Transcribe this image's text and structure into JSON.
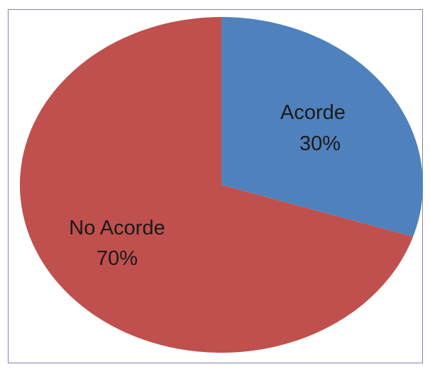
{
  "chart_data": {
    "type": "pie",
    "title": "",
    "slices": [
      {
        "label": "Acorde",
        "value": 30,
        "percent_text": "30%",
        "color": "#4F81BD"
      },
      {
        "label": "No Acorde",
        "value": 70,
        "percent_text": "70%",
        "color": "#C0504D"
      }
    ],
    "start_angle": "12 o'clock",
    "direction": "clockwise",
    "legend": "none",
    "data_labels": "inside slices, category name and percentage"
  },
  "colors": {
    "frame_border": "#8a7fa8",
    "background": "#ffffff",
    "label_text": "#1a1a1a"
  }
}
